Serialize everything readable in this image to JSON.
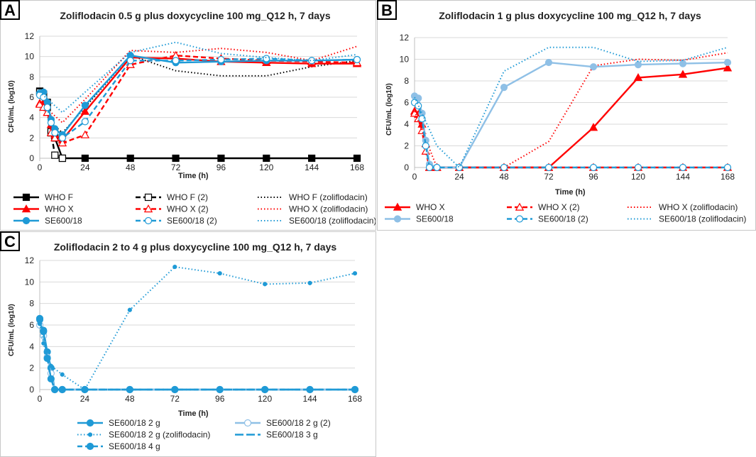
{
  "panels": [
    {
      "letter": "A",
      "title": "Zoliflodacin 0.5 g plus doxycycline 100 mg_Q12 h, 7 days"
    },
    {
      "letter": "B",
      "title": "Zoliflodacin 1 g plus doxycycline 100 mg_Q12 h, 7 days"
    },
    {
      "letter": "C",
      "title": "Zoliflodacin 2 to 4 g plus doxycycline 100 mg_Q12 h, 7 days"
    }
  ],
  "colors": {
    "black": "#000000",
    "red": "#ff0000",
    "blue": "#1f9ad6",
    "lightblue": "#8fc0e6",
    "grid": "#d9d9d9",
    "axis": "#bfbfbf"
  },
  "chart_data": [
    {
      "id": "A",
      "type": "line",
      "title": "Zoliflodacin 0.5 g plus doxycycline 100 mg_Q12 h, 7 days",
      "xlabel": "Time (h)",
      "ylabel": "CFU/mL (log10)",
      "xlim": [
        0,
        168
      ],
      "ylim": [
        0,
        12
      ],
      "xticks": [
        0,
        24,
        48,
        72,
        96,
        120,
        144,
        168
      ],
      "yticks": [
        0,
        2,
        4,
        6,
        8,
        10,
        12
      ],
      "legend_position": "bottom",
      "series": [
        {
          "name": "WHO F",
          "color": "black",
          "dash": "solid",
          "marker": "square",
          "fill": true,
          "x": [
            0,
            2,
            4,
            6,
            8,
            12,
            24,
            48,
            72,
            96,
            120,
            144,
            168
          ],
          "y": [
            6.6,
            6.3,
            5.5,
            2.5,
            2.0,
            0,
            0,
            0,
            0,
            0,
            0,
            0,
            0
          ]
        },
        {
          "name": "WHO F (2)",
          "color": "black",
          "dash": "dash",
          "marker": "square",
          "fill": false,
          "x": [
            0,
            2,
            4,
            6,
            8,
            12
          ],
          "y": [
            6.5,
            6.2,
            5.0,
            2.6,
            0.3,
            0
          ]
        },
        {
          "name": "WHO F (zoliflodacin)",
          "color": "black",
          "dash": "dot",
          "marker": "none",
          "fill": false,
          "x": [
            0,
            6,
            12,
            24,
            48,
            72,
            96,
            120,
            144,
            168
          ],
          "y": [
            6.5,
            3.5,
            2.5,
            5.0,
            10.1,
            8.6,
            8.1,
            8.1,
            9.0,
            9.6
          ]
        },
        {
          "name": "WHO X",
          "color": "red",
          "dash": "solid",
          "marker": "triangle",
          "fill": true,
          "x": [
            0,
            2,
            4,
            6,
            8,
            12,
            24,
            48,
            72,
            96,
            120,
            144,
            168
          ],
          "y": [
            5.4,
            5.5,
            4.5,
            3.3,
            2.3,
            1.8,
            4.6,
            9.9,
            9.8,
            9.5,
            9.4,
            9.3,
            9.3
          ]
        },
        {
          "name": "WHO X (2)",
          "color": "red",
          "dash": "dash",
          "marker": "triangle",
          "fill": false,
          "x": [
            0,
            2,
            4,
            6,
            8,
            12,
            24,
            48,
            72,
            96,
            120,
            144,
            168
          ],
          "y": [
            5.3,
            5.0,
            4.5,
            2.5,
            2.0,
            1.5,
            2.3,
            9.2,
            10.1,
            9.8,
            9.6,
            9.5,
            9.4
          ]
        },
        {
          "name": "WHO X (zoliflodacin)",
          "color": "red",
          "dash": "dot",
          "marker": "none",
          "fill": false,
          "x": [
            0,
            12,
            24,
            48,
            72,
            96,
            120,
            144,
            168
          ],
          "y": [
            5.5,
            3.5,
            5.8,
            10.6,
            10.4,
            10.8,
            10.4,
            9.6,
            11.0
          ]
        },
        {
          "name": "SE600/18",
          "color": "blue",
          "dash": "solid",
          "marker": "circle",
          "fill": true,
          "x": [
            0,
            2,
            4,
            6,
            8,
            12,
            24,
            48,
            72,
            96,
            120,
            144,
            168
          ],
          "y": [
            6.4,
            6.5,
            5.5,
            3.8,
            2.9,
            2.3,
            5.2,
            10.1,
            9.4,
            9.5,
            9.6,
            9.6,
            9.7
          ]
        },
        {
          "name": "SE600/18 (2)",
          "color": "blue",
          "dash": "dash",
          "marker": "circle",
          "fill": false,
          "x": [
            0,
            2,
            4,
            6,
            8,
            12,
            24,
            48,
            72,
            96,
            120,
            144,
            168
          ],
          "y": [
            6.2,
            6.0,
            5.0,
            3.5,
            2.5,
            2.0,
            3.6,
            9.6,
            9.6,
            9.7,
            9.8,
            9.6,
            9.7
          ]
        },
        {
          "name": "SE600/18 (zoliflodacin)",
          "color": "blue",
          "dash": "dot",
          "marker": "none",
          "fill": false,
          "x": [
            0,
            12,
            24,
            48,
            72,
            96,
            120,
            144,
            168
          ],
          "y": [
            6.5,
            4.5,
            6.5,
            10.4,
            11.4,
            10.3,
            9.9,
            9.6,
            10.2
          ]
        }
      ]
    },
    {
      "id": "B",
      "type": "line",
      "title": "Zoliflodacin 1 g plus doxycycline 100 mg_Q12 h, 7 days",
      "xlabel": "Time (h)",
      "ylabel": "CFU/mL (log10)",
      "xlim": [
        0,
        168
      ],
      "ylim": [
        0,
        12
      ],
      "xticks": [
        0,
        24,
        48,
        72,
        96,
        120,
        144,
        168
      ],
      "yticks": [
        0,
        2,
        4,
        6,
        8,
        10,
        12
      ],
      "legend_position": "bottom",
      "series": [
        {
          "name": "WHO X",
          "color": "red",
          "dash": "solid",
          "marker": "triangle",
          "fill": true,
          "x": [
            0,
            2,
            4,
            6,
            8,
            12,
            24,
            48,
            72,
            96,
            120,
            144,
            168
          ],
          "y": [
            5.2,
            4.9,
            4.0,
            2.2,
            0,
            0,
            0,
            0,
            0,
            3.7,
            8.3,
            8.6,
            9.2
          ]
        },
        {
          "name": "WHO X (2)",
          "color": "red",
          "dash": "dash",
          "marker": "triangle",
          "fill": false,
          "x": [
            0,
            2,
            4,
            6,
            8,
            12,
            24,
            48,
            72,
            96,
            120,
            144,
            168
          ],
          "y": [
            5.0,
            4.5,
            3.4,
            1.5,
            0,
            0,
            0,
            0,
            0,
            0,
            0,
            0,
            0
          ]
        },
        {
          "name": "WHO X (zoliflodacin)",
          "color": "red",
          "dash": "dot",
          "marker": "none",
          "fill": false,
          "x": [
            0,
            12,
            24,
            48,
            72,
            96,
            120,
            144,
            168
          ],
          "y": [
            5.2,
            0,
            0,
            0,
            2.4,
            9.4,
            10.0,
            9.9,
            10.6
          ]
        },
        {
          "name": "SE600/18",
          "color": "lightblue",
          "dash": "solid",
          "marker": "circle",
          "fill": true,
          "x": [
            0,
            2,
            4,
            6,
            8,
            12,
            24,
            48,
            72,
            96,
            120,
            144,
            168
          ],
          "y": [
            6.6,
            6.4,
            5.0,
            2.5,
            0.3,
            0,
            0,
            7.4,
            9.7,
            9.3,
            9.5,
            9.6,
            9.7
          ]
        },
        {
          "name": "SE600/18 (2)",
          "color": "blue",
          "dash": "dash",
          "marker": "circle",
          "fill": false,
          "x": [
            0,
            2,
            4,
            6,
            8,
            12,
            24,
            48,
            72,
            96,
            120,
            144,
            168
          ],
          "y": [
            6.0,
            5.7,
            4.5,
            2.0,
            0,
            0,
            0,
            0,
            0,
            0,
            0,
            0,
            0
          ]
        },
        {
          "name": "SE600/18 (zoliflodacin)",
          "color": "blue",
          "dash": "dot",
          "marker": "none",
          "fill": false,
          "x": [
            0,
            12,
            24,
            48,
            72,
            96,
            120,
            144,
            168
          ],
          "y": [
            6.5,
            2.0,
            0,
            8.9,
            11.1,
            11.1,
            9.8,
            9.9,
            11.1
          ]
        }
      ]
    },
    {
      "id": "C",
      "type": "line",
      "title": "Zoliflodacin 2 to 4 g plus doxycycline 100 mg_Q12 h, 7 days",
      "xlabel": "Time (h)",
      "ylabel": "CFU/mL (log10)",
      "xlim": [
        0,
        168
      ],
      "ylim": [
        0,
        12
      ],
      "xticks": [
        0,
        24,
        48,
        72,
        96,
        120,
        144,
        168
      ],
      "yticks": [
        0,
        2,
        4,
        6,
        8,
        10,
        12
      ],
      "legend_position": "bottom",
      "series": [
        {
          "name": "SE600/18 2 g",
          "color": "blue",
          "dash": "solid",
          "marker": "circle",
          "fill": true,
          "x": [
            0,
            2,
            4,
            6,
            8,
            12,
            24,
            48,
            72,
            96,
            120,
            144,
            168
          ],
          "y": [
            6.6,
            5.5,
            3.5,
            2.0,
            0,
            0,
            0,
            0,
            0,
            0,
            0,
            0,
            0
          ]
        },
        {
          "name": "SE600/18 2 g (2)",
          "color": "lightblue",
          "dash": "solid",
          "marker": "circle",
          "fill": false,
          "x": [
            0,
            2,
            4,
            6,
            8,
            12,
            24,
            48,
            72,
            96,
            120,
            144,
            168
          ],
          "y": [
            6.0,
            5.0,
            3.0,
            1.5,
            0,
            0,
            0,
            0,
            0,
            0,
            0,
            0,
            0
          ]
        },
        {
          "name": "SE600/18 2 g (zoliflodacin)",
          "color": "blue",
          "dash": "dot",
          "marker": "circle",
          "small": true,
          "fill": true,
          "x": [
            0,
            2,
            4,
            6,
            12,
            24,
            48,
            72,
            96,
            120,
            144,
            168
          ],
          "y": [
            6.1,
            4.3,
            2.8,
            2.2,
            1.4,
            0,
            7.4,
            11.4,
            10.8,
            9.8,
            9.9,
            10.8
          ]
        },
        {
          "name": "SE600/18 3 g",
          "color": "blue",
          "dash": "longdash",
          "marker": "none",
          "fill": false,
          "x": [
            0,
            2,
            4,
            6,
            8,
            12,
            24,
            48,
            72,
            96,
            120,
            144,
            168
          ],
          "y": [
            6.3,
            5.2,
            3.0,
            1.0,
            0,
            0,
            0,
            0,
            0,
            0,
            0,
            0,
            0
          ]
        },
        {
          "name": "SE600/18 4 g",
          "color": "blue",
          "dash": "dash",
          "marker": "circle",
          "fill": true,
          "x": [
            0,
            2,
            4,
            6,
            8,
            12,
            24,
            48,
            72,
            96,
            120,
            144,
            168
          ],
          "y": [
            6.5,
            5.4,
            2.9,
            1.0,
            0,
            0,
            0,
            0,
            0,
            0,
            0,
            0,
            0
          ]
        }
      ]
    }
  ]
}
